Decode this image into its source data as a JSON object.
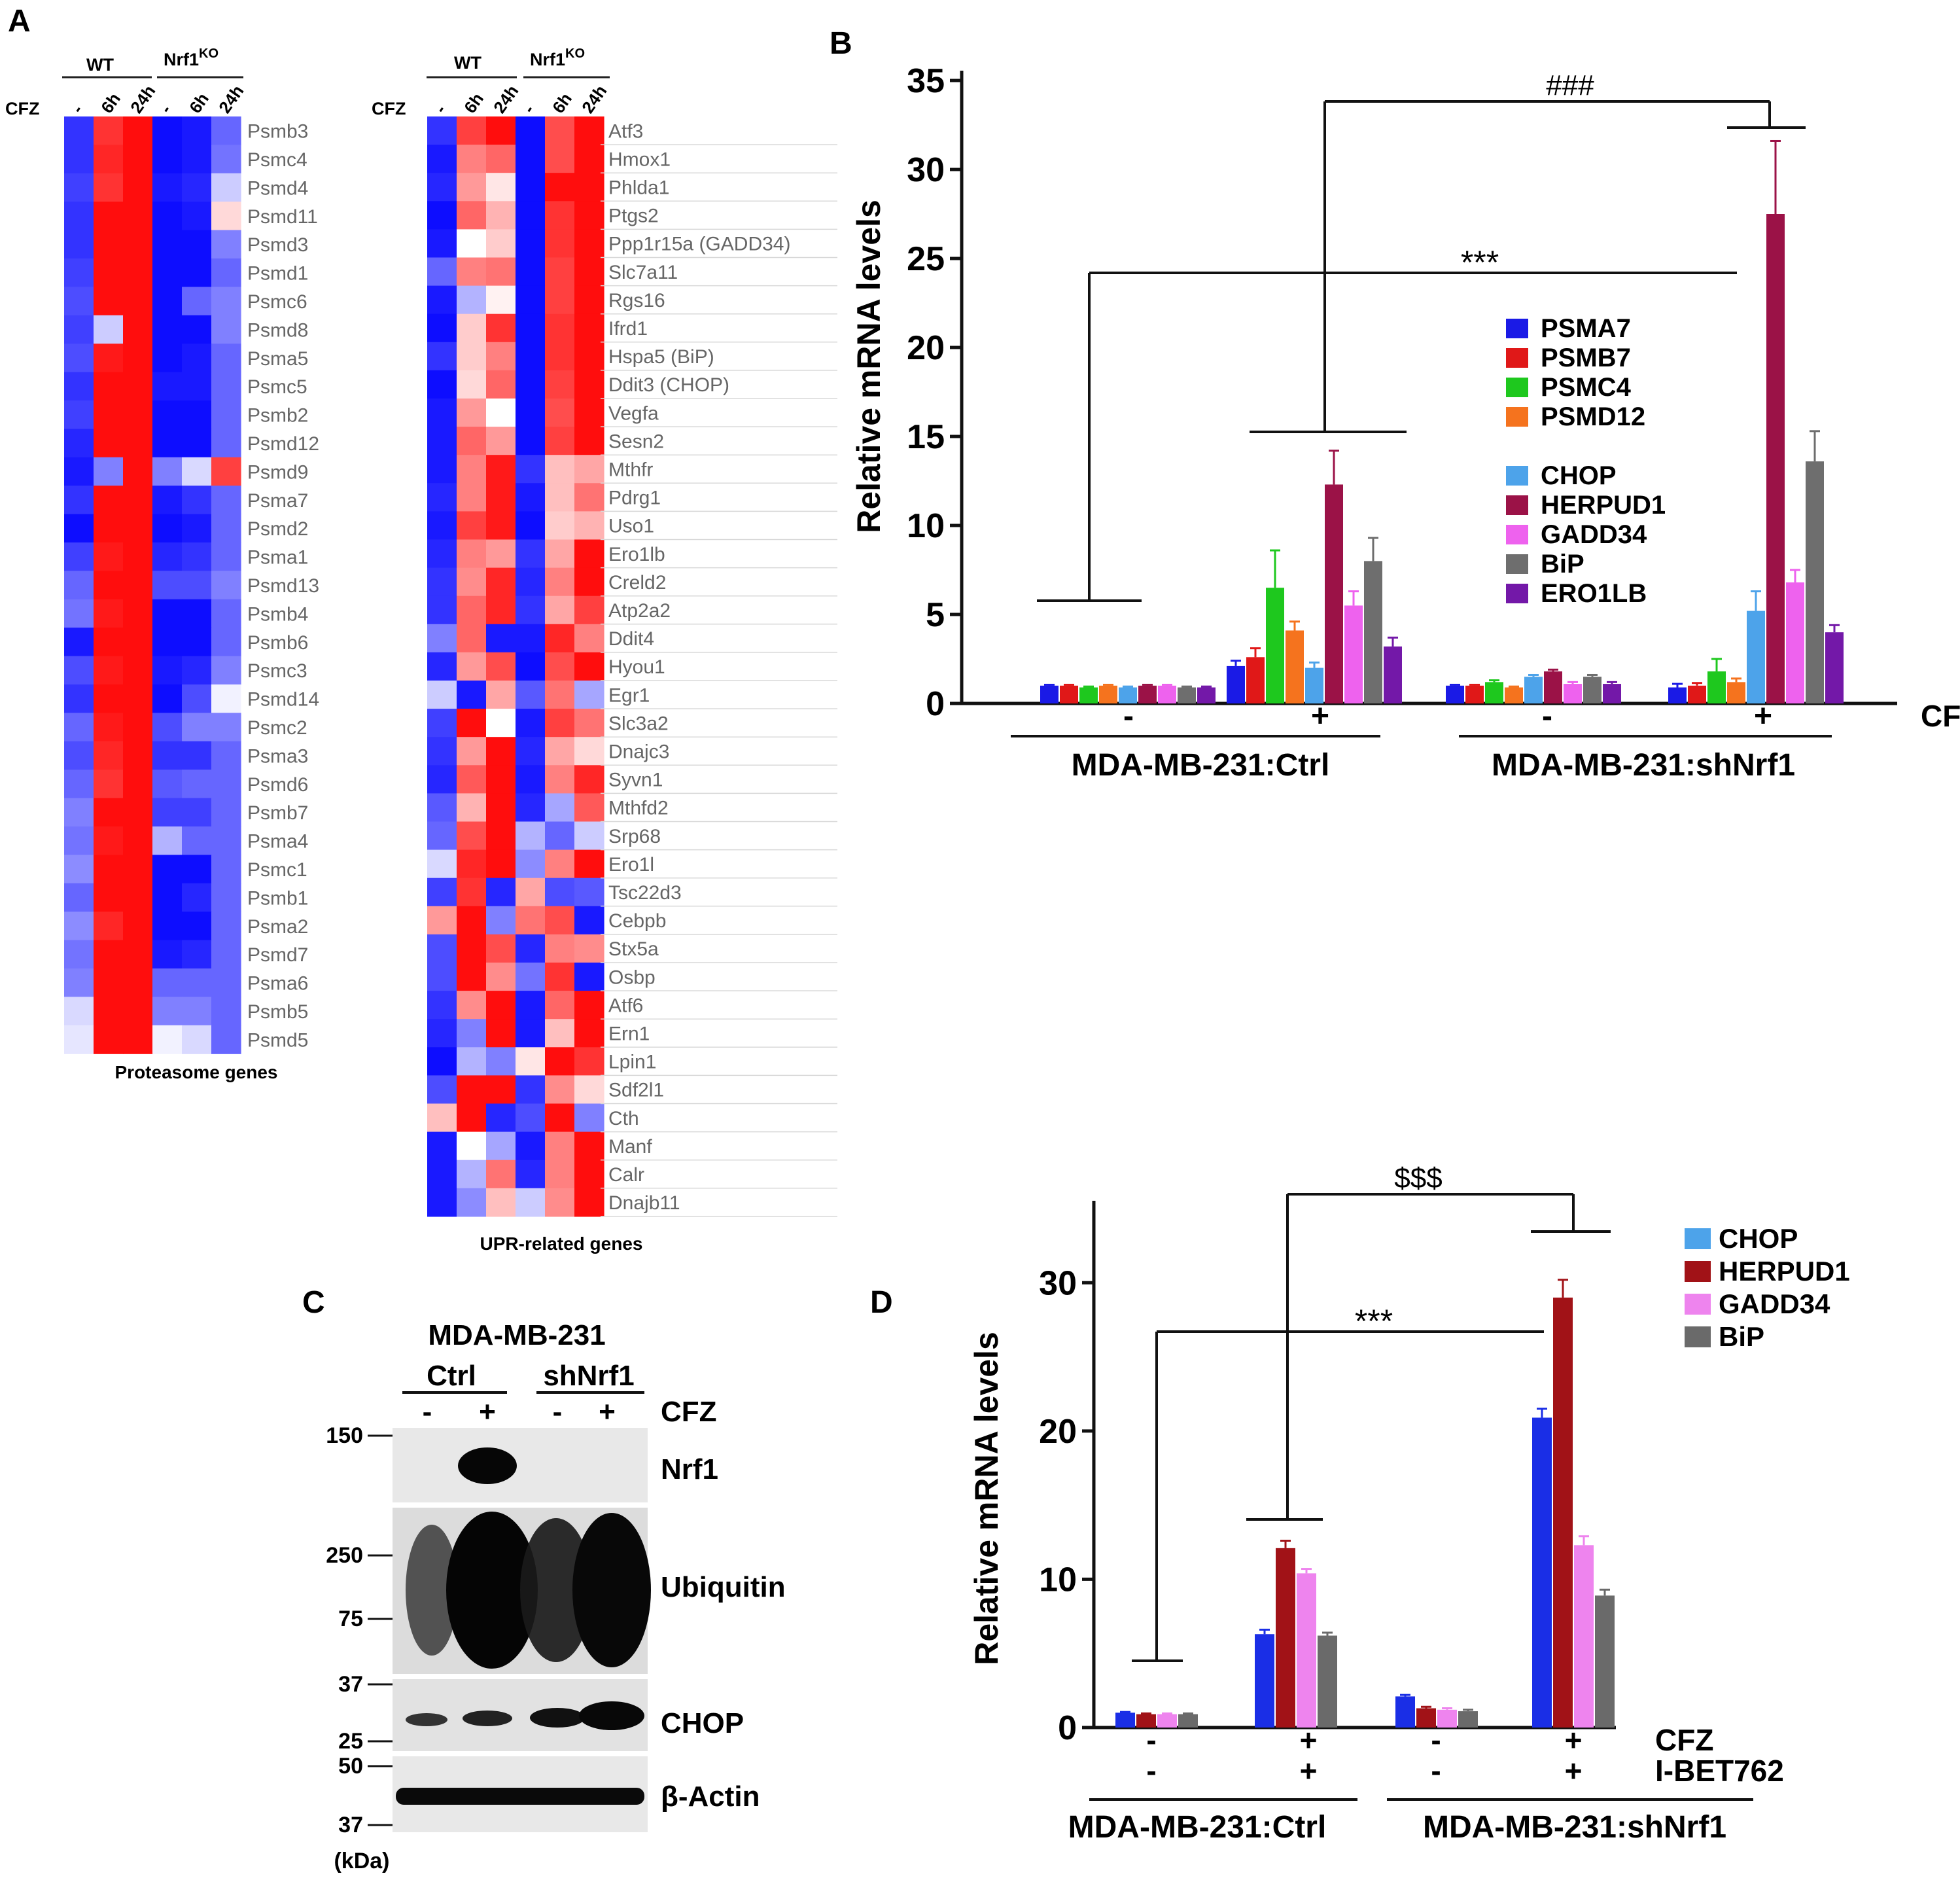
{
  "panel_labels": {
    "a": "A",
    "b": "B",
    "c": "C",
    "d": "D"
  },
  "colors": {
    "heat_high": "#ff0000",
    "heat_mid": "#ffffff",
    "heat_low": "#0000ff",
    "PSMA7": "#1a1ae6",
    "PSMB7": "#e01818",
    "PSMC4": "#1ec81e",
    "PSMD12": "#f5731e",
    "CHOP": "#4da3ea",
    "HERPUD1": "#9b1247",
    "GADD34": "#ee62ee",
    "BiP": "#6e6e6e",
    "ERO1LB": "#7318a8",
    "CHOP_D": "#1a2ee6",
    "HERPUD1_D": "#a11217",
    "GADD34_D": "#ee84ee",
    "BiP_D": "#6a6a6a"
  },
  "panel_a": {
    "cfz_label": "CFZ",
    "wt_label": "WT",
    "ko_label": "Nrf1",
    "ko_sup": "KO",
    "columns": [
      "-",
      "6h",
      "24h",
      "-",
      "6h",
      "24h"
    ],
    "proteasome": {
      "title": "Proteasome genes",
      "genes": [
        "Psmb3",
        "Psmc4",
        "Psmd4",
        "Psmd11",
        "Psmd3",
        "Psmd1",
        "Psmc6",
        "Psmd8",
        "Psma5",
        "Psmc5",
        "Psmb2",
        "Psmd12",
        "Psmd9",
        "Psma7",
        "Psmd2",
        "Psma1",
        "Psmd13",
        "Psmb4",
        "Psmb6",
        "Psmc3",
        "Psmd14",
        "Psmc2",
        "Psma3",
        "Psmd6",
        "Psmb7",
        "Psma4",
        "Psmc1",
        "Psmb1",
        "Psma2",
        "Psmd7",
        "Psma6",
        "Psmb5",
        "Psmd5"
      ],
      "values": [
        [
          -0.8,
          0.8,
          0.95,
          -0.95,
          -0.9,
          -0.6
        ],
        [
          -0.8,
          0.85,
          0.95,
          -0.95,
          -0.9,
          -0.55
        ],
        [
          -0.75,
          0.8,
          0.95,
          -0.9,
          -0.85,
          -0.2
        ],
        [
          -0.8,
          0.95,
          0.95,
          -0.95,
          -0.9,
          0.15
        ],
        [
          -0.8,
          0.95,
          0.95,
          -0.95,
          -0.95,
          -0.5
        ],
        [
          -0.75,
          0.95,
          0.95,
          -0.95,
          -0.95,
          -0.6
        ],
        [
          -0.7,
          0.95,
          0.95,
          -0.95,
          -0.6,
          -0.5
        ],
        [
          -0.75,
          -0.2,
          0.95,
          -0.95,
          -0.95,
          -0.5
        ],
        [
          -0.7,
          0.9,
          0.95,
          -0.95,
          -0.9,
          -0.6
        ],
        [
          -0.8,
          0.95,
          0.95,
          -0.9,
          -0.9,
          -0.6
        ],
        [
          -0.75,
          0.95,
          0.95,
          -0.95,
          -0.95,
          -0.6
        ],
        [
          -0.85,
          0.95,
          0.95,
          -0.95,
          -0.95,
          -0.6
        ],
        [
          -0.9,
          -0.5,
          0.95,
          -0.5,
          -0.15,
          0.75
        ],
        [
          -0.8,
          0.95,
          0.95,
          -0.9,
          -0.8,
          -0.6
        ],
        [
          -0.95,
          0.95,
          0.95,
          -0.95,
          -0.9,
          -0.6
        ],
        [
          -0.75,
          0.9,
          0.95,
          -0.85,
          -0.8,
          -0.6
        ],
        [
          -0.6,
          0.95,
          0.95,
          -0.7,
          -0.7,
          -0.5
        ],
        [
          -0.55,
          0.9,
          0.95,
          -0.95,
          -0.95,
          -0.6
        ],
        [
          -0.9,
          0.95,
          0.95,
          -0.95,
          -0.95,
          -0.6
        ],
        [
          -0.7,
          0.9,
          0.95,
          -0.9,
          -0.85,
          -0.5
        ],
        [
          -0.8,
          0.95,
          0.95,
          -0.95,
          -0.7,
          -0.05
        ],
        [
          -0.6,
          0.9,
          0.95,
          -0.7,
          -0.5,
          -0.5
        ],
        [
          -0.7,
          0.85,
          0.95,
          -0.8,
          -0.8,
          -0.6
        ],
        [
          -0.6,
          0.8,
          0.95,
          -0.65,
          -0.6,
          -0.6
        ],
        [
          -0.5,
          0.95,
          0.95,
          -0.75,
          -0.75,
          -0.6
        ],
        [
          -0.55,
          0.9,
          0.95,
          -0.3,
          -0.6,
          -0.6
        ],
        [
          -0.45,
          0.95,
          0.95,
          -0.95,
          -0.95,
          -0.6
        ],
        [
          -0.6,
          0.95,
          0.95,
          -0.95,
          -0.85,
          -0.6
        ],
        [
          -0.45,
          0.85,
          0.95,
          -0.95,
          -0.95,
          -0.6
        ],
        [
          -0.55,
          0.95,
          0.95,
          -0.9,
          -0.85,
          -0.6
        ],
        [
          -0.5,
          0.95,
          0.95,
          -0.6,
          -0.6,
          -0.6
        ],
        [
          -0.15,
          0.95,
          0.95,
          -0.5,
          -0.5,
          -0.6
        ],
        [
          -0.1,
          0.95,
          0.95,
          -0.05,
          -0.15,
          -0.6
        ]
      ]
    },
    "upr": {
      "title": "UPR-related genes",
      "genes": [
        "Atf3",
        "Hmox1",
        "Phlda1",
        "Ptgs2",
        "Ppp1r15a (GADD34)",
        "Slc7a11",
        "Rgs16",
        "Ifrd1",
        "Hspa5 (BiP)",
        "Ddit3 (CHOP)",
        "Vegfa",
        "Sesn2",
        "Mthfr",
        "Pdrg1",
        "Uso1",
        "Ero1lb",
        "Creld2",
        "Atp2a2",
        "Ddit4",
        "Hyou1",
        "Egr1",
        "Slc3a2",
        "Dnajc3",
        "Syvn1",
        "Mthfd2",
        "Srp68",
        "Ero1l",
        "Tsc22d3",
        "Cebpb",
        "Stx5a",
        "Osbp",
        "Atf6",
        "Ern1",
        "Lpin1",
        "Sdf2l1",
        "Cth",
        "Manf",
        "Calr",
        "Dnajb11"
      ],
      "values": [
        [
          -0.8,
          0.75,
          0.95,
          -0.95,
          0.7,
          0.95
        ],
        [
          -0.9,
          0.5,
          0.6,
          -0.95,
          0.7,
          0.95
        ],
        [
          -0.85,
          0.4,
          0.1,
          -0.95,
          0.95,
          0.95
        ],
        [
          -0.95,
          0.6,
          0.3,
          -0.95,
          0.8,
          0.95
        ],
        [
          -0.9,
          0.0,
          0.2,
          -0.95,
          0.8,
          0.95
        ],
        [
          -0.6,
          0.5,
          0.55,
          -0.95,
          0.75,
          0.95
        ],
        [
          -0.9,
          -0.3,
          0.05,
          -0.95,
          0.75,
          0.95
        ],
        [
          -0.95,
          0.2,
          0.8,
          -0.95,
          0.8,
          0.95
        ],
        [
          -0.8,
          0.2,
          0.5,
          -0.95,
          0.8,
          0.95
        ],
        [
          -0.95,
          0.15,
          0.6,
          -0.95,
          0.75,
          0.95
        ],
        [
          -0.9,
          0.4,
          0.0,
          -0.95,
          0.7,
          0.95
        ],
        [
          -0.9,
          0.6,
          0.4,
          -0.95,
          0.75,
          0.95
        ],
        [
          -0.9,
          0.5,
          0.9,
          -0.8,
          0.25,
          0.35
        ],
        [
          -0.85,
          0.5,
          0.9,
          -0.9,
          0.25,
          0.55
        ],
        [
          -0.9,
          0.75,
          0.9,
          -0.95,
          0.2,
          0.3
        ],
        [
          -0.85,
          0.5,
          0.4,
          -0.8,
          0.35,
          0.95
        ],
        [
          -0.8,
          0.45,
          0.85,
          -0.85,
          0.5,
          0.95
        ],
        [
          -0.8,
          0.6,
          0.85,
          -0.8,
          0.35,
          0.75
        ],
        [
          -0.5,
          0.6,
          -0.9,
          -0.9,
          0.85,
          0.5
        ],
        [
          -0.85,
          0.4,
          0.7,
          -0.95,
          0.7,
          0.95
        ],
        [
          -0.2,
          -0.9,
          0.35,
          -0.65,
          0.55,
          -0.35
        ],
        [
          -0.75,
          0.95,
          0.0,
          -0.9,
          0.75,
          0.55
        ],
        [
          -0.8,
          0.4,
          0.95,
          -0.85,
          0.35,
          0.15
        ],
        [
          -0.85,
          0.65,
          0.95,
          -0.9,
          0.5,
          0.85
        ],
        [
          -0.65,
          0.3,
          0.95,
          -0.85,
          -0.35,
          0.65
        ],
        [
          -0.6,
          0.7,
          0.95,
          -0.3,
          -0.6,
          -0.2
        ],
        [
          -0.15,
          0.85,
          0.95,
          -0.45,
          0.5,
          0.95
        ],
        [
          -0.75,
          0.8,
          -0.85,
          0.35,
          -0.7,
          -0.65
        ],
        [
          0.4,
          0.95,
          -0.5,
          0.55,
          0.7,
          -0.9
        ],
        [
          -0.7,
          0.95,
          0.7,
          -0.85,
          0.5,
          0.45
        ],
        [
          -0.7,
          0.95,
          0.45,
          -0.55,
          0.8,
          -0.9
        ],
        [
          -0.8,
          0.45,
          0.95,
          -0.9,
          0.6,
          0.95
        ],
        [
          -0.85,
          -0.5,
          0.95,
          -0.9,
          0.25,
          0.95
        ],
        [
          -0.95,
          -0.3,
          -0.5,
          0.1,
          0.95,
          0.8
        ],
        [
          -0.7,
          0.95,
          0.95,
          -0.8,
          0.45,
          0.15
        ],
        [
          0.25,
          0.95,
          -0.85,
          -0.7,
          0.95,
          -0.5
        ],
        [
          -0.9,
          0.0,
          -0.35,
          -0.9,
          0.5,
          0.95
        ],
        [
          -0.9,
          -0.3,
          0.55,
          -0.85,
          0.5,
          0.95
        ],
        [
          -0.9,
          -0.45,
          0.25,
          -0.2,
          0.45,
          0.95
        ]
      ]
    }
  },
  "panel_b": {
    "chart_data": {
      "type": "bar",
      "title": "",
      "ylabel": "Relative mRNA levels",
      "xlabel": "CFZ",
      "ylim": [
        0,
        35
      ],
      "yticks": [
        0,
        5,
        10,
        15,
        20,
        25,
        30,
        35
      ],
      "categories": [
        "MDA-MB-231:Ctrl CFZ -",
        "MDA-MB-231:Ctrl CFZ +",
        "MDA-MB-231:shNrf1 CFZ -",
        "MDA-MB-231:shNrf1 CFZ +"
      ],
      "cfz_labels": [
        "-",
        "+",
        "-",
        "+"
      ],
      "group_labels": [
        "MDA-MB-231:Ctrl",
        "MDA-MB-231:shNrf1"
      ],
      "series": [
        {
          "name": "PSMA7",
          "values": [
            1.0,
            2.1,
            1.0,
            0.9
          ],
          "errors": [
            0.05,
            0.3,
            0.05,
            0.2
          ]
        },
        {
          "name": "PSMB7",
          "values": [
            1.0,
            2.6,
            1.0,
            1.0
          ],
          "errors": [
            0.05,
            0.5,
            0.05,
            0.15
          ]
        },
        {
          "name": "PSMC4",
          "values": [
            0.9,
            6.5,
            1.2,
            1.8
          ],
          "errors": [
            0.05,
            2.1,
            0.1,
            0.7
          ]
        },
        {
          "name": "PSMD12",
          "values": [
            1.0,
            4.1,
            0.9,
            1.2
          ],
          "errors": [
            0.05,
            0.5,
            0.05,
            0.2
          ]
        },
        {
          "name": "CHOP",
          "values": [
            0.9,
            2.0,
            1.5,
            5.2
          ],
          "errors": [
            0.05,
            0.3,
            0.1,
            1.1
          ]
        },
        {
          "name": "HERPUD1",
          "values": [
            1.0,
            12.3,
            1.8,
            27.5
          ],
          "errors": [
            0.05,
            1.9,
            0.1,
            4.1
          ]
        },
        {
          "name": "GADD34",
          "values": [
            1.0,
            5.5,
            1.1,
            6.8
          ],
          "errors": [
            0.05,
            0.8,
            0.1,
            0.7
          ]
        },
        {
          "name": "BiP",
          "values": [
            0.9,
            8.0,
            1.5,
            13.6
          ],
          "errors": [
            0.05,
            1.3,
            0.1,
            1.7
          ]
        },
        {
          "name": "ERO1LB",
          "values": [
            0.9,
            3.2,
            1.1,
            4.0
          ],
          "errors": [
            0.05,
            0.5,
            0.1,
            0.4
          ]
        }
      ],
      "legend": [
        "PSMA7",
        "PSMB7",
        "PSMC4",
        "PSMD12",
        "CHOP",
        "HERPUD1",
        "GADD34",
        "BiP",
        "ERO1LB"
      ],
      "annotations": {
        "significance_top": "###",
        "significance_mid": "***"
      }
    }
  },
  "panel_c": {
    "title": "MDA-MB-231",
    "lanes": {
      "ctrl": "Ctrl",
      "shnrf1": "shNrf1"
    },
    "cfz_label": "CFZ",
    "cfz_values": [
      "-",
      "+",
      "-",
      "+"
    ],
    "blots": [
      "Nrf1",
      "Ubiquitin",
      "CHOP",
      "β-Actin"
    ],
    "markers": [
      "150",
      "250",
      "75",
      "37",
      "25",
      "50",
      "37"
    ],
    "unit": "(kDa)"
  },
  "panel_d": {
    "chart_data": {
      "type": "bar",
      "ylabel": "Relative mRNA levels",
      "ylim": [
        0,
        35
      ],
      "yticks": [
        0,
        10,
        20,
        30
      ],
      "categories": [
        "MDA-MB-231:Ctrl -/-",
        "MDA-MB-231:Ctrl +/+",
        "MDA-MB-231:shNrf1 -/-",
        "MDA-MB-231:shNrf1 +/+"
      ],
      "treatments": [
        {
          "name": "CFZ",
          "values": [
            "-",
            "+",
            "-",
            "+"
          ]
        },
        {
          "name": "I-BET762",
          "values": [
            "-",
            "+",
            "-",
            "+"
          ]
        }
      ],
      "group_labels": [
        "MDA-MB-231:Ctrl",
        "MDA-MB-231:shNrf1"
      ],
      "series": [
        {
          "name": "CHOP",
          "values": [
            1.0,
            6.3,
            2.1,
            20.9
          ],
          "errors": [
            0.05,
            0.3,
            0.1,
            0.6
          ]
        },
        {
          "name": "HERPUD1",
          "values": [
            0.9,
            12.1,
            1.3,
            29.0
          ],
          "errors": [
            0.05,
            0.5,
            0.1,
            1.2
          ]
        },
        {
          "name": "GADD34",
          "values": [
            0.9,
            10.4,
            1.2,
            12.3
          ],
          "errors": [
            0.05,
            0.3,
            0.1,
            0.6
          ]
        },
        {
          "name": "BiP",
          "values": [
            0.9,
            6.2,
            1.1,
            8.9
          ],
          "errors": [
            0.05,
            0.2,
            0.1,
            0.4
          ]
        }
      ],
      "legend": [
        "CHOP",
        "HERPUD1",
        "GADD34",
        "BiP"
      ],
      "annotations": {
        "significance_top": "$$$",
        "significance_mid": "***"
      }
    }
  }
}
